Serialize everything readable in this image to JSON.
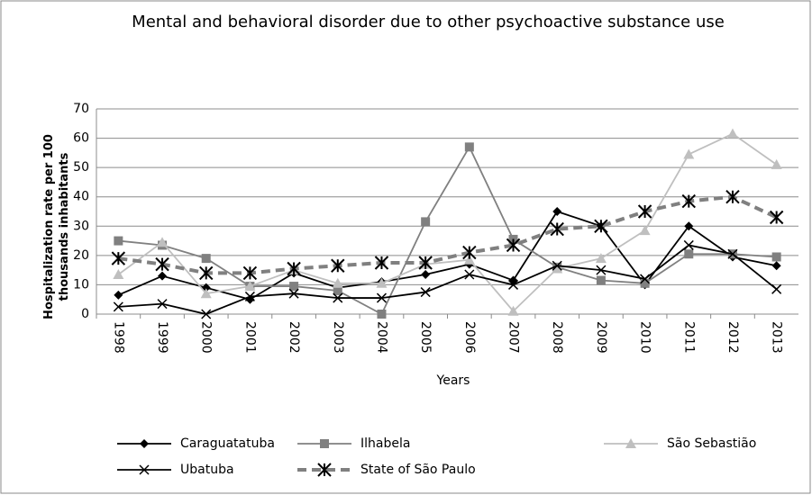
{
  "chart_data": {
    "type": "line",
    "title": "Mental and behavioral disorder due to other psychoactive substance use",
    "x_label": "Years",
    "y_label": "Hospitalization rate per 100 thousands inhabitants",
    "categories": [
      "1998",
      "1999",
      "2000",
      "2001",
      "2002",
      "2003",
      "2004",
      "2005",
      "2006",
      "2007",
      "2008",
      "2009",
      "2010",
      "2011",
      "2012",
      "2013"
    ],
    "ylim": [
      0,
      70
    ],
    "yticks": [
      0,
      10,
      20,
      30,
      40,
      50,
      60,
      70
    ],
    "grid": true,
    "legend": "bottom",
    "series": [
      {
        "name": "Caraguatatuba",
        "color": "#000000",
        "marker": "diamond",
        "dashed": false,
        "values": [
          6.5,
          13,
          9,
          5,
          14,
          9,
          11,
          13.5,
          17,
          11.5,
          35,
          30,
          10,
          30,
          19.5,
          16.5
        ]
      },
      {
        "name": "Ilhabela",
        "color": "#808080",
        "marker": "square",
        "dashed": false,
        "values": [
          25,
          23.5,
          19,
          9.5,
          9.5,
          8,
          0,
          31.5,
          57,
          25.5,
          16,
          11.5,
          10.5,
          20.5,
          20.5,
          19.5
        ]
      },
      {
        "name": "São Sebastião",
        "color": "#bfbfbf",
        "marker": "triangle",
        "dashed": false,
        "values": [
          13.5,
          24.5,
          7,
          9.5,
          15,
          10.5,
          10.5,
          17,
          18.5,
          1,
          15.5,
          19,
          28.5,
          54.5,
          61.5,
          51
        ]
      },
      {
        "name": "Ubatuba",
        "color": "#000000",
        "marker": "x",
        "dashed": false,
        "values": [
          2.5,
          3.5,
          0,
          6,
          7,
          5.5,
          5.5,
          7.5,
          13.5,
          10,
          16.5,
          15,
          12,
          23.5,
          20.5,
          8.5
        ]
      },
      {
        "name": "State of São Paulo",
        "color": "#808080",
        "marker": "star",
        "dashed": true,
        "values": [
          19,
          17,
          14,
          14,
          15.5,
          16.5,
          17.5,
          17.5,
          21,
          23.5,
          29,
          30,
          35,
          38.5,
          40,
          33
        ]
      }
    ]
  }
}
